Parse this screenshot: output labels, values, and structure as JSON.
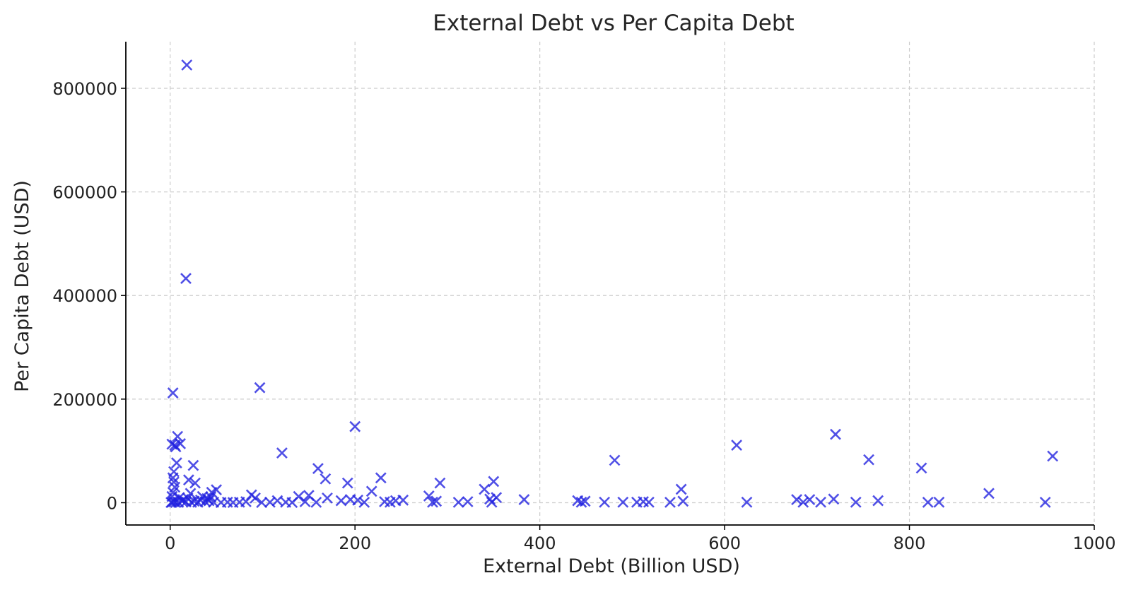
{
  "chart_data": {
    "type": "scatter",
    "title": "External Debt vs Per Capita Debt",
    "xlabel": "External Debt (Billion USD)",
    "ylabel": "Per Capita Debt (USD)",
    "xlim": [
      -48,
      1000
    ],
    "ylim": [
      -43000,
      890000
    ],
    "xticks": [
      0,
      200,
      400,
      600,
      800,
      1000
    ],
    "yticks": [
      0,
      200000,
      400000,
      600000,
      800000
    ],
    "xtick_labels": [
      "0",
      "200",
      "400",
      "600",
      "800",
      "1000"
    ],
    "ytick_labels": [
      "0",
      "200000",
      "400000",
      "600000",
      "800000"
    ],
    "grid": true,
    "marker": "x",
    "color": "#2020e0",
    "points": [
      [
        18,
        845000
      ],
      [
        17,
        433000
      ],
      [
        3,
        212000
      ],
      [
        97,
        222000
      ],
      [
        200,
        147000
      ],
      [
        121,
        96000
      ],
      [
        160,
        66000
      ],
      [
        168,
        46000
      ],
      [
        192,
        38000
      ],
      [
        228,
        48000
      ],
      [
        218,
        22000
      ],
      [
        292,
        38000
      ],
      [
        350,
        41000
      ],
      [
        340,
        26000
      ],
      [
        481,
        82000
      ],
      [
        553,
        26000
      ],
      [
        613,
        111000
      ],
      [
        720,
        132000
      ],
      [
        756,
        83000
      ],
      [
        813,
        67000
      ],
      [
        886,
        18000
      ],
      [
        955,
        90000
      ],
      [
        8,
        128000
      ],
      [
        5,
        111000
      ],
      [
        11,
        114000
      ],
      [
        2,
        113000
      ],
      [
        6,
        108000
      ],
      [
        25,
        72000
      ],
      [
        7,
        77000
      ],
      [
        4,
        60000
      ],
      [
        3,
        48000
      ],
      [
        4,
        40000
      ],
      [
        20,
        44000
      ],
      [
        27,
        38000
      ],
      [
        5,
        30000
      ],
      [
        3,
        20000
      ],
      [
        2,
        12000
      ],
      [
        10,
        10000
      ],
      [
        22,
        18000
      ],
      [
        35,
        12000
      ],
      [
        45,
        20000
      ],
      [
        50,
        25000
      ],
      [
        13,
        3000
      ],
      [
        17,
        1500
      ],
      [
        23,
        800
      ],
      [
        30,
        1000
      ],
      [
        38,
        2000
      ],
      [
        42,
        4000
      ],
      [
        47,
        1000
      ],
      [
        55,
        500
      ],
      [
        62,
        1000
      ],
      [
        68,
        500
      ],
      [
        75,
        1000
      ],
      [
        82,
        2000
      ],
      [
        88,
        15000
      ],
      [
        92,
        9000
      ],
      [
        99,
        500
      ],
      [
        108,
        1000
      ],
      [
        116,
        4000
      ],
      [
        125,
        1000
      ],
      [
        132,
        500
      ],
      [
        139,
        12000
      ],
      [
        146,
        2000
      ],
      [
        150,
        14000
      ],
      [
        158,
        800
      ],
      [
        170,
        9000
      ],
      [
        185,
        4000
      ],
      [
        195,
        6000
      ],
      [
        203,
        5000
      ],
      [
        210,
        800
      ],
      [
        232,
        2000
      ],
      [
        238,
        1000
      ],
      [
        244,
        4000
      ],
      [
        252,
        5000
      ],
      [
        280,
        13000
      ],
      [
        284,
        1000
      ],
      [
        288,
        3000
      ],
      [
        312,
        800
      ],
      [
        322,
        2000
      ],
      [
        346,
        7000
      ],
      [
        348,
        1000
      ],
      [
        353,
        10000
      ],
      [
        383,
        6000
      ],
      [
        441,
        4000
      ],
      [
        445,
        1000
      ],
      [
        449,
        3000
      ],
      [
        470,
        1000
      ],
      [
        490,
        1000
      ],
      [
        505,
        1000
      ],
      [
        512,
        2000
      ],
      [
        518,
        1000
      ],
      [
        541,
        800
      ],
      [
        555,
        3000
      ],
      [
        624,
        1000
      ],
      [
        678,
        6000
      ],
      [
        685,
        1000
      ],
      [
        692,
        6000
      ],
      [
        704,
        1000
      ],
      [
        718,
        7000
      ],
      [
        742,
        1000
      ],
      [
        766,
        4000
      ],
      [
        820,
        800
      ],
      [
        832,
        1000
      ],
      [
        947,
        800
      ],
      [
        1,
        500
      ],
      [
        2,
        1000
      ],
      [
        4,
        2000
      ],
      [
        6,
        500
      ],
      [
        9,
        800
      ],
      [
        14,
        6000
      ],
      [
        19,
        9000
      ],
      [
        26,
        3000
      ],
      [
        33,
        5000
      ],
      [
        40,
        8000
      ],
      [
        44,
        11000
      ]
    ]
  }
}
